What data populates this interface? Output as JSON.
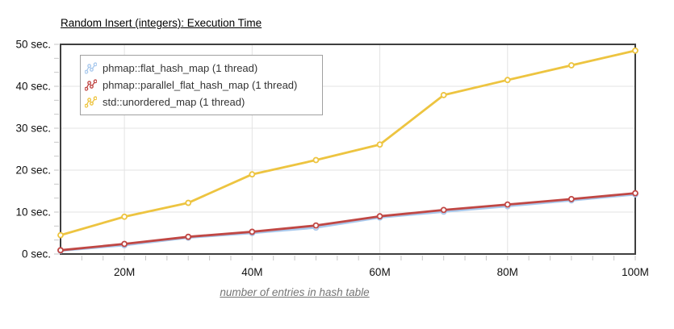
{
  "title": "Random Insert (integers): Execution Time",
  "chart_data": {
    "type": "line",
    "title": "Random Insert (integers): Execution Time",
    "xlabel": "number of entries in hash table",
    "ylabel": "",
    "x_unit": "M entries",
    "x": [
      10,
      20,
      30,
      40,
      50,
      60,
      70,
      80,
      90,
      100
    ],
    "xlim": [
      10,
      100
    ],
    "ylim": [
      0,
      50
    ],
    "x_tick_values": [
      20,
      40,
      60,
      80,
      100
    ],
    "x_tick_labels": [
      "20M",
      "40M",
      "60M",
      "80M",
      "100M"
    ],
    "y_tick_values": [
      0,
      10,
      20,
      30,
      40,
      50
    ],
    "y_tick_labels": [
      "0 sec.",
      "10 sec.",
      "20 sec.",
      "30 sec.",
      "40 sec.",
      "50 sec."
    ],
    "grid": true,
    "legend_position": "top-left",
    "series": [
      {
        "name": "phmap::flat_hash_map (1 thread)",
        "color": "#a9c9ed",
        "values": [
          0.8,
          2.1,
          3.9,
          5.0,
          6.3,
          8.7,
          10.1,
          11.4,
          12.8,
          14.2
        ]
      },
      {
        "name": "phmap::parallel_flat_hash_map (1 thread)",
        "color": "#c04744",
        "values": [
          0.9,
          2.4,
          4.1,
          5.3,
          6.8,
          9.0,
          10.5,
          11.8,
          13.1,
          14.5
        ]
      },
      {
        "name": "std::unordered_map (1 thread)",
        "color": "#edc440",
        "values": [
          4.5,
          8.9,
          12.2,
          19.0,
          22.4,
          26.1,
          37.9,
          41.5,
          45.0,
          48.5
        ]
      }
    ]
  },
  "colors": {
    "axis_border": "#3f3f3f",
    "gridline": "#e3e3e3",
    "minor_tick": "#c6c6c6",
    "tick_text": "#111111",
    "xlabel_text": "#757575",
    "legend_border": "#a0a0a0",
    "background": "#ffffff"
  }
}
